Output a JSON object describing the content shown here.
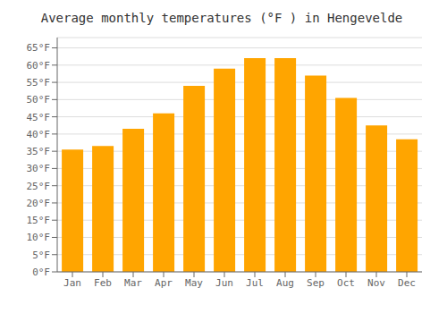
{
  "chart_data": {
    "type": "bar",
    "title": "Average monthly temperatures (°F ) in Hengevelde",
    "categories": [
      "Jan",
      "Feb",
      "Mar",
      "Apr",
      "May",
      "Jun",
      "Jul",
      "Aug",
      "Sep",
      "Oct",
      "Nov",
      "Dec"
    ],
    "values": [
      35.5,
      36.5,
      41.5,
      46,
      54,
      59,
      62,
      62,
      57,
      50.5,
      42.5,
      38.5
    ],
    "color": "#FFA500",
    "ylim": [
      0,
      68
    ],
    "yticks": [
      {
        "value": 0,
        "label": "0°F"
      },
      {
        "value": 5,
        "label": "5°F"
      },
      {
        "value": 10,
        "label": "10°F"
      },
      {
        "value": 15,
        "label": "15°F"
      },
      {
        "value": 20,
        "label": "20°F"
      },
      {
        "value": 25,
        "label": "25°F"
      },
      {
        "value": 30,
        "label": "30°F"
      },
      {
        "value": 35,
        "label": "35°F"
      },
      {
        "value": 40,
        "label": "40°F"
      },
      {
        "value": 45,
        "label": "45°F"
      },
      {
        "value": 50,
        "label": "50°F"
      },
      {
        "value": 55,
        "label": "55°F"
      },
      {
        "value": 60,
        "label": "60°F"
      },
      {
        "value": 65,
        "label": "65°F"
      }
    ],
    "grid": true
  }
}
